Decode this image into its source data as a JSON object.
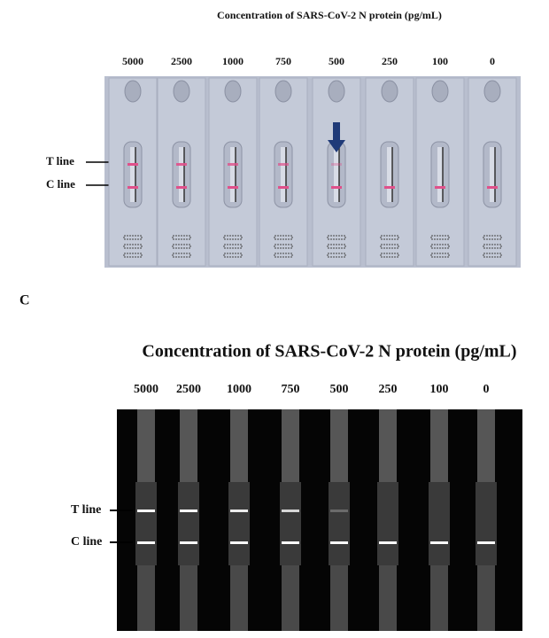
{
  "panel_b": {
    "title": "Concentration of SARS-CoV-2 N protein (pg/mL)",
    "concentrations": [
      "5000",
      "2500",
      "1000",
      "750",
      "500",
      "250",
      "100",
      "0"
    ],
    "t_label": "T line",
    "c_label": "C line"
  },
  "panel_c": {
    "label": "C",
    "title": "Concentration of SARS-CoV-2 N protein (pg/mL)",
    "concentrations": [
      "5000",
      "2500",
      "1000",
      "750",
      "500",
      "250",
      "100",
      "0"
    ],
    "t_label": "T line",
    "c_label": "C line"
  }
}
